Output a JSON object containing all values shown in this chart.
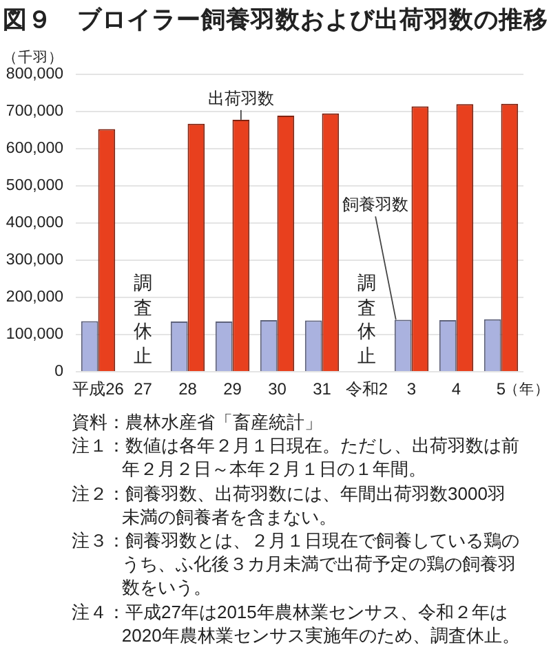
{
  "chart_data": {
    "type": "bar",
    "title": "図９　ブロイラー飼養羽数および出荷羽数の推移",
    "categories": [
      "平成26",
      "27",
      "28",
      "29",
      "30",
      "31",
      "令和2",
      "3",
      "4",
      "5"
    ],
    "series": [
      {
        "name": "飼養羽数",
        "color": "#aab2df",
        "values": [
          136000,
          null,
          135000,
          135000,
          139000,
          138000,
          null,
          140000,
          139000,
          141000
        ]
      },
      {
        "name": "出荷羽数",
        "color": "#e8401e",
        "values": [
          653000,
          null,
          667000,
          678000,
          689000,
          695000,
          null,
          714000,
          720000,
          721000
        ]
      }
    ],
    "ylim": [
      0,
      800000
    ],
    "yticks": [
      0,
      {
        "value": 100000,
        "label": "100,000"
      },
      {
        "value": 200000,
        "label": "200,000"
      },
      {
        "value": 300000,
        "label": "300,000"
      },
      {
        "value": 400000,
        "label": "400,000"
      },
      {
        "value": 500000,
        "label": "500,000"
      },
      {
        "value": 600000,
        "label": "600,000"
      },
      {
        "value": 700000,
        "label": "700,000"
      },
      {
        "value": 800000,
        "label": "800,000"
      }
    ],
    "ylabel": "（千羽）",
    "xlabel": "（年）",
    "grid": "y",
    "legend": false,
    "annotations": [
      "調査休止",
      "調査休止",
      "資料：農林水産省「畜産統計」",
      "注１：数値は各年２月１日現在。ただし、出荷羽数は前年２月２日～本年２月１日の１年間。",
      "注２：飼養羽数、出荷羽数には、年間出荷羽数3000羽未満の飼養者を含まない。",
      "注３：飼養羽数とは、２月１日現在で飼養している鶏のうち、ふ化後３カ月未満で出荷予定の鶏の飼養羽数をいう。",
      "注４：平成27年は2015年農林業センサス、令和２年は2020年農林業センサス実施年のため、調査休止。"
    ]
  }
}
